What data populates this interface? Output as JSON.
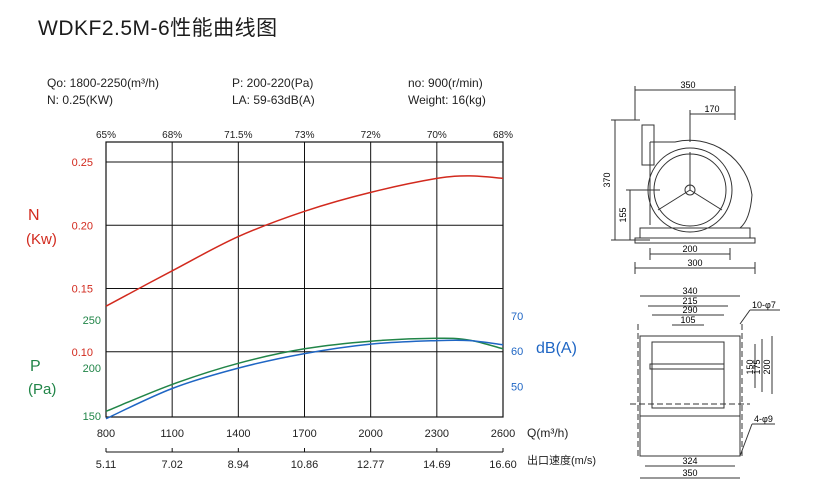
{
  "title": "WDKF2.5M-6性能曲线图",
  "specs": {
    "q": "Qo: 1800-2250(m³/h)",
    "n": "N: 0.25(KW)",
    "p": "P: 200-220(Pa)",
    "la": "LA: 59-63dB(A)",
    "speed": "no: 900(r/min)",
    "weight": "Weight: 16(kg)"
  },
  "chart_data": {
    "type": "line",
    "x_ticks": [
      "800",
      "1100",
      "1400",
      "1700",
      "2000",
      "2300",
      "2600"
    ],
    "xlabel": "Q(m³/h)",
    "velocity_ticks": [
      "5.11",
      "7.02",
      "8.94",
      "10.86",
      "12.77",
      "14.69",
      "16.60"
    ],
    "velocity_label": "出口速度(m/s)",
    "efficiency_ticks": [
      "65%",
      "68%",
      "71.5%",
      "73%",
      "72%",
      "70%",
      "68%"
    ],
    "n_axis": {
      "label": "N",
      "unit": "(Kw)",
      "ticks": [
        "0.25",
        "0.20",
        "0.15",
        "0.10"
      ],
      "ylim": [
        0.05,
        0.25
      ]
    },
    "p_axis": {
      "label": "P",
      "unit": "(Pa)",
      "ticks": [
        "250",
        "200",
        "150"
      ],
      "ylim": [
        120,
        250
      ]
    },
    "db_axis": {
      "label": "dB(A)",
      "ticks": [
        "70",
        "60",
        "50"
      ],
      "ylim": [
        41,
        70
      ]
    },
    "series": [
      {
        "axis": "n",
        "color": "#d22a1e",
        "x": [
          800,
          1100,
          1400,
          1700,
          2000,
          2300,
          2450,
          2600
        ],
        "y": [
          0.136,
          0.164,
          0.191,
          0.211,
          0.226,
          0.237,
          0.239,
          0.237
        ]
      },
      {
        "axis": "p",
        "color": "#218548",
        "x": [
          800,
          1100,
          1400,
          1700,
          2000,
          2300,
          2450,
          2600
        ],
        "y": [
          155,
          183,
          205,
          220,
          228,
          231,
          229,
          220
        ]
      },
      {
        "axis": "db",
        "color": "#1f66c4",
        "x": [
          800,
          1100,
          1400,
          1700,
          2000,
          2300,
          2450,
          2600
        ],
        "y": [
          40.8,
          49.4,
          55.2,
          59.3,
          62.0,
          63.0,
          63.0,
          61.8
        ]
      }
    ]
  },
  "drawing_top": {
    "dims": [
      "350",
      "170",
      "370",
      "155",
      "200",
      "300"
    ]
  },
  "drawing_bottom": {
    "dims": [
      "340",
      "215",
      "290",
      "105",
      "10-φ7",
      "150",
      "175",
      "200",
      "4-φ9",
      "324",
      "350"
    ]
  },
  "colors": {
    "n": "#d22a1e",
    "p": "#218548",
    "db": "#1f66c4"
  }
}
